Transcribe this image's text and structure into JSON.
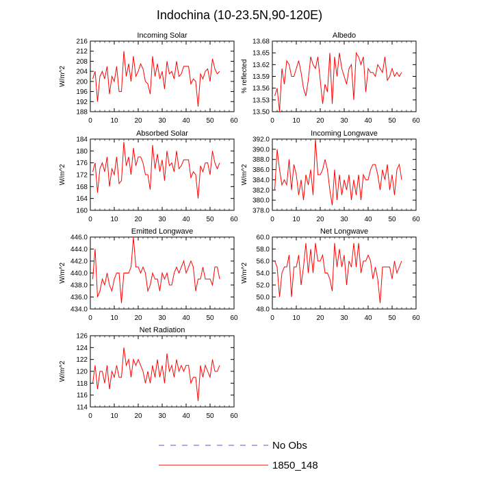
{
  "title": "Indochina (10-23.5N,90-120E)",
  "legend": {
    "entries": [
      {
        "label": "No Obs",
        "color": "#5555cc",
        "dash": "dashed"
      },
      {
        "label": "1850_148",
        "color": "#ff0000",
        "dash": "solid"
      }
    ],
    "placement": "bottom-center"
  },
  "line_color": "#ff0000",
  "chart_data": [
    {
      "type": "line",
      "title": "Incoming Solar",
      "ylabel": "W/m^2",
      "xlim": [
        0,
        60
      ],
      "xticks": [
        "0",
        "10",
        "20",
        "30",
        "40",
        "50",
        "60"
      ],
      "ylim": [
        188,
        216
      ],
      "yticks": [
        "188",
        "192",
        "196",
        "200",
        "204",
        "208",
        "212",
        "216"
      ],
      "grid": false,
      "series": [
        {
          "name": "1850_148",
          "x": [
            1,
            2,
            3,
            4,
            5,
            6,
            7,
            8,
            9,
            10,
            11,
            12,
            13,
            14,
            15,
            16,
            17,
            18,
            19,
            20,
            21,
            22,
            23,
            24,
            25,
            26,
            27,
            28,
            29,
            30,
            31,
            32,
            33,
            34,
            35,
            36,
            37,
            38,
            39,
            40,
            41,
            42,
            43,
            44,
            45,
            46,
            47,
            48,
            49,
            50,
            51,
            52,
            53,
            54
          ],
          "values": [
            201,
            204,
            192,
            202,
            204,
            201,
            206,
            195,
            202,
            200,
            206,
            196,
            196,
            212,
            202,
            207,
            200,
            210,
            202,
            204,
            207,
            205,
            200,
            199,
            195,
            210,
            202,
            207,
            201,
            204,
            197,
            208,
            203,
            204,
            201,
            208,
            202,
            203,
            206,
            206,
            206,
            199,
            201,
            200,
            190,
            203,
            201,
            204,
            205,
            200,
            209,
            205,
            203,
            204
          ]
        }
      ]
    },
    {
      "type": "line",
      "title": "Albedo",
      "ylabel": "% reflected",
      "xlim": [
        0,
        60
      ],
      "xticks": [
        "0",
        "10",
        "20",
        "30",
        "40",
        "50",
        "60"
      ],
      "ylim": [
        13.5,
        13.68
      ],
      "yticks": [
        "13.50",
        "13.53",
        "13.56",
        "13.59",
        "13.62",
        "13.65",
        "13.68"
      ],
      "grid": false,
      "series": [
        {
          "name": "1850_148",
          "x": [
            1,
            2,
            3,
            4,
            5,
            6,
            7,
            8,
            9,
            10,
            11,
            12,
            13,
            14,
            15,
            16,
            17,
            18,
            19,
            20,
            21,
            22,
            23,
            24,
            25,
            26,
            27,
            28,
            29,
            30,
            31,
            32,
            33,
            34,
            35,
            36,
            37,
            38,
            39,
            40,
            41,
            42,
            43,
            44,
            45,
            46,
            47,
            48,
            49,
            50,
            51,
            52,
            53,
            54
          ],
          "values": [
            13.54,
            13.56,
            13.5,
            13.61,
            13.57,
            13.63,
            13.62,
            13.59,
            13.59,
            13.61,
            13.63,
            13.6,
            13.56,
            13.54,
            13.58,
            13.64,
            13.62,
            13.61,
            13.64,
            13.58,
            13.52,
            13.57,
            13.55,
            13.65,
            13.52,
            13.64,
            13.59,
            13.65,
            13.61,
            13.59,
            13.57,
            13.61,
            13.62,
            13.53,
            13.65,
            13.64,
            13.62,
            13.64,
            13.55,
            13.61,
            13.6,
            13.6,
            13.59,
            13.62,
            13.61,
            13.6,
            13.64,
            13.58,
            13.59,
            13.61,
            13.59,
            13.6,
            13.59,
            13.6
          ]
        }
      ]
    },
    {
      "type": "line",
      "title": "Absorbed Solar",
      "ylabel": "W/m^2",
      "xlim": [
        0,
        60
      ],
      "xticks": [
        "0",
        "10",
        "20",
        "30",
        "40",
        "50",
        "60"
      ],
      "ylim": [
        160,
        184
      ],
      "yticks": [
        "160",
        "164",
        "168",
        "172",
        "176",
        "180",
        "184"
      ],
      "grid": false,
      "series": [
        {
          "name": "1850_148",
          "x": [
            1,
            2,
            3,
            4,
            5,
            6,
            7,
            8,
            9,
            10,
            11,
            12,
            13,
            14,
            15,
            16,
            17,
            18,
            19,
            20,
            21,
            22,
            23,
            24,
            25,
            26,
            27,
            28,
            29,
            30,
            31,
            32,
            33,
            34,
            35,
            36,
            37,
            38,
            39,
            40,
            41,
            42,
            43,
            44,
            45,
            46,
            47,
            48,
            49,
            50,
            51,
            52,
            53,
            54
          ],
          "values": [
            173,
            176,
            166,
            174,
            176,
            173,
            178,
            168,
            174,
            172,
            178,
            169,
            170,
            183,
            175,
            178,
            172,
            181,
            175,
            178,
            178,
            176,
            172,
            172,
            167,
            182,
            174,
            179,
            173,
            177,
            170,
            180,
            175,
            176,
            173,
            180,
            174,
            175,
            177,
            177,
            177,
            171,
            173,
            172,
            164,
            175,
            173,
            176,
            176,
            172,
            180,
            176,
            174,
            176
          ]
        }
      ]
    },
    {
      "type": "line",
      "title": "Incoming Longwave",
      "ylabel": "W/m^2",
      "xlim": [
        0,
        60
      ],
      "xticks": [
        "0",
        "10",
        "20",
        "30",
        "40",
        "50",
        "60"
      ],
      "ylim": [
        378.0,
        392.0
      ],
      "yticks": [
        "378.0",
        "380.0",
        "382.0",
        "384.0",
        "386.0",
        "388.0",
        "390.0",
        "392.0"
      ],
      "grid": false,
      "series": [
        {
          "name": "1850_148",
          "x": [
            1,
            2,
            3,
            4,
            5,
            6,
            7,
            8,
            9,
            10,
            11,
            12,
            13,
            14,
            15,
            16,
            17,
            18,
            19,
            20,
            21,
            22,
            23,
            24,
            25,
            26,
            27,
            28,
            29,
            30,
            31,
            32,
            33,
            34,
            35,
            36,
            37,
            38,
            39,
            40,
            41,
            42,
            43,
            44,
            45,
            46,
            47,
            48,
            49,
            50,
            51,
            52,
            53,
            54
          ],
          "values": [
            382,
            390,
            386,
            383,
            384,
            383,
            388,
            382,
            387,
            385,
            381,
            384,
            380,
            385,
            383,
            386,
            381,
            392,
            385,
            385,
            386,
            388,
            386,
            382,
            379,
            386,
            380,
            385,
            381,
            384,
            382,
            385,
            380,
            384,
            381,
            385,
            380,
            385,
            384,
            384,
            386,
            387,
            387,
            385,
            382,
            386,
            384,
            387,
            382,
            385,
            381,
            386,
            387,
            384
          ]
        }
      ]
    },
    {
      "type": "line",
      "title": "Emitted Longwave",
      "ylabel": "W/m^2",
      "xlim": [
        0,
        60
      ],
      "xticks": [
        "0",
        "10",
        "20",
        "30",
        "40",
        "50",
        "60"
      ],
      "ylim": [
        434.0,
        446.0
      ],
      "yticks": [
        "434.0",
        "436.0",
        "438.0",
        "440.0",
        "442.0",
        "444.0",
        "446.0"
      ],
      "grid": false,
      "series": [
        {
          "name": "1850_148",
          "x": [
            1,
            2,
            3,
            4,
            5,
            6,
            7,
            8,
            9,
            10,
            11,
            12,
            13,
            14,
            15,
            16,
            17,
            18,
            19,
            20,
            21,
            22,
            23,
            24,
            25,
            26,
            27,
            28,
            29,
            30,
            31,
            32,
            33,
            34,
            35,
            36,
            37,
            38,
            39,
            40,
            41,
            42,
            43,
            44,
            45,
            46,
            47,
            48,
            49,
            50,
            51,
            52,
            53,
            54
          ],
          "values": [
            439,
            444,
            436,
            437,
            439,
            438,
            440,
            438,
            437,
            439,
            440,
            440,
            435,
            440,
            440,
            440,
            441,
            446,
            441,
            441,
            440,
            441,
            440,
            437,
            438,
            440,
            439,
            439,
            437,
            440,
            439,
            440,
            438,
            438,
            440,
            441,
            440,
            441,
            442,
            440,
            441,
            442,
            441,
            437,
            439,
            439,
            441,
            439,
            439,
            439,
            438,
            441,
            441,
            439
          ]
        }
      ]
    },
    {
      "type": "line",
      "title": "Net Longwave",
      "ylabel": "W/m^2",
      "xlim": [
        0,
        60
      ],
      "xticks": [
        "0",
        "10",
        "20",
        "30",
        "40",
        "50",
        "60"
      ],
      "ylim": [
        48.0,
        60.0
      ],
      "yticks": [
        "48.0",
        "50.0",
        "52.0",
        "54.0",
        "56.0",
        "58.0",
        "60.0"
      ],
      "grid": false,
      "series": [
        {
          "name": "1850_148",
          "x": [
            1,
            2,
            3,
            4,
            5,
            6,
            7,
            8,
            9,
            10,
            11,
            12,
            13,
            14,
            15,
            16,
            17,
            18,
            19,
            20,
            21,
            22,
            23,
            24,
            25,
            26,
            27,
            28,
            29,
            30,
            31,
            32,
            33,
            34,
            35,
            36,
            37,
            38,
            39,
            40,
            41,
            42,
            43,
            44,
            45,
            46,
            47,
            48,
            49,
            50,
            51,
            52,
            53,
            54
          ],
          "values": [
            56,
            55,
            50,
            54,
            55,
            55,
            57,
            50,
            55,
            55,
            57,
            52,
            55,
            59,
            54,
            58,
            54,
            59,
            56,
            56,
            57,
            54,
            54,
            53,
            51,
            59,
            55,
            58,
            55,
            57,
            52,
            56,
            55,
            59,
            55,
            59,
            54,
            56,
            56,
            57,
            56,
            53,
            55,
            53,
            49,
            55,
            55,
            55,
            55,
            53,
            56,
            54,
            55,
            56
          ]
        }
      ]
    },
    {
      "type": "line",
      "title": "Net Radiation",
      "ylabel": "W/m^2",
      "xlim": [
        0,
        60
      ],
      "xticks": [
        "0",
        "10",
        "20",
        "30",
        "40",
        "50",
        "60"
      ],
      "ylim": [
        114,
        126
      ],
      "yticks": [
        "114",
        "116",
        "118",
        "120",
        "122",
        "124",
        "126"
      ],
      "grid": false,
      "series": [
        {
          "name": "1850_148",
          "x": [
            1,
            2,
            3,
            4,
            5,
            6,
            7,
            8,
            9,
            10,
            11,
            12,
            13,
            14,
            15,
            16,
            17,
            18,
            19,
            20,
            21,
            22,
            23,
            24,
            25,
            26,
            27,
            28,
            29,
            30,
            31,
            32,
            33,
            34,
            35,
            36,
            37,
            38,
            39,
            40,
            41,
            42,
            43,
            44,
            45,
            46,
            47,
            48,
            49,
            50,
            51,
            52,
            53,
            54
          ],
          "values": [
            118,
            121,
            117,
            120,
            120,
            118,
            121,
            117,
            120,
            119,
            121,
            119,
            119,
            124,
            121,
            122,
            119,
            122,
            121,
            122,
            121,
            120,
            118,
            120,
            118,
            121,
            119,
            122,
            119,
            121,
            118,
            123,
            120,
            121,
            119,
            122,
            120,
            121,
            120,
            121,
            121,
            118,
            119,
            119,
            115,
            121,
            119,
            121,
            120,
            119,
            122,
            120,
            120,
            121
          ]
        }
      ]
    }
  ]
}
